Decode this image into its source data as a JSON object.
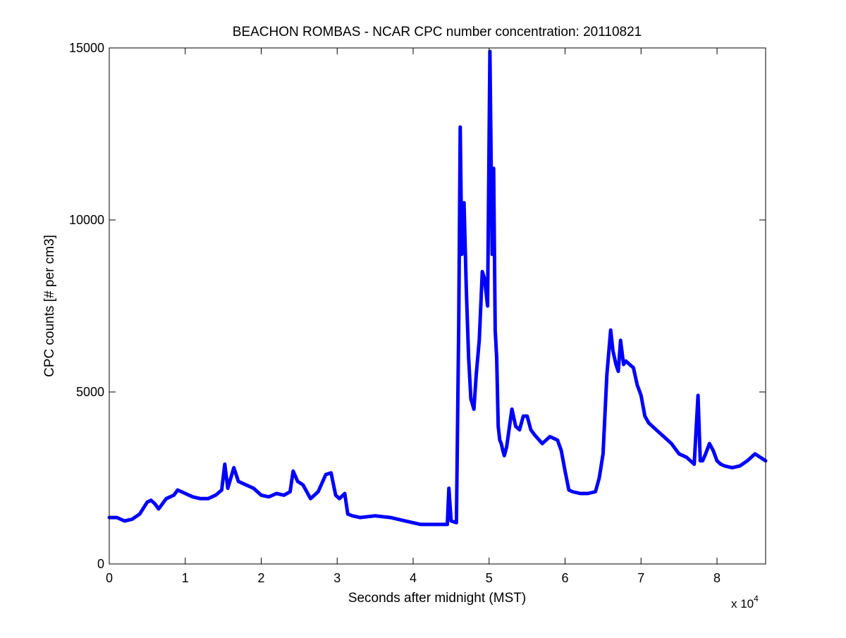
{
  "chart_data": {
    "type": "line",
    "title": "BEACHON ROMBAS - NCAR CPC number concentration: 20110821",
    "xlabel": "Seconds after midnight (MST)",
    "ylabel": "CPC counts [# per cm3]",
    "x_multiplier_label": "x 10",
    "x_multiplier_exponent": "4",
    "xlim": [
      0,
      86400
    ],
    "ylim": [
      0,
      15000
    ],
    "x_ticks": [
      0,
      10000,
      20000,
      30000,
      40000,
      50000,
      60000,
      70000,
      80000
    ],
    "x_tick_labels": [
      "0",
      "1",
      "2",
      "3",
      "4",
      "5",
      "6",
      "7",
      "8"
    ],
    "y_ticks": [
      0,
      5000,
      10000,
      15000
    ],
    "y_tick_labels": [
      "0",
      "5000",
      "10000",
      "15000"
    ],
    "grid": false,
    "series": [
      {
        "color": "#0000ff",
        "x": [
          0,
          1000,
          2000,
          3000,
          4000,
          5000,
          5500,
          6000,
          6500,
          7500,
          8500,
          9000,
          9500,
          10000,
          11000,
          12000,
          13000,
          14000,
          14800,
          15200,
          15600,
          16000,
          16400,
          17000,
          18000,
          19000,
          20000,
          21000,
          22000,
          23000,
          23800,
          24200,
          24800,
          25500,
          26500,
          27500,
          28500,
          29200,
          29800,
          30300,
          31000,
          31400,
          32000,
          33000,
          35000,
          37000,
          39000,
          41000,
          43000,
          44500,
          44700,
          45000,
          45700,
          46000,
          46200,
          46400,
          46700,
          47000,
          47300,
          47600,
          48000,
          48300,
          48700,
          49100,
          49400,
          49800,
          50100,
          50400,
          50600,
          50800,
          51000,
          51200,
          51400,
          51600,
          51800,
          52000,
          52300,
          53000,
          53500,
          54000,
          54500,
          55000,
          55500,
          56000,
          57000,
          58000,
          59000,
          59500,
          60000,
          60500,
          61000,
          62000,
          63000,
          64000,
          64500,
          65000,
          65500,
          66000,
          66300,
          66700,
          67000,
          67300,
          67700,
          68000,
          68500,
          69000,
          69500,
          70000,
          70500,
          71000,
          72000,
          73000,
          74000,
          75000,
          76000,
          77000,
          77500,
          77800,
          78100,
          78500,
          79000,
          79500,
          80000,
          80500,
          81000,
          82000,
          83000,
          84000,
          85000,
          86400
        ],
        "y": [
          1350,
          1350,
          1250,
          1300,
          1450,
          1800,
          1850,
          1750,
          1600,
          1900,
          2000,
          2150,
          2100,
          2050,
          1950,
          1900,
          1900,
          2000,
          2150,
          2900,
          2200,
          2500,
          2800,
          2400,
          2300,
          2200,
          2000,
          1950,
          2050,
          2000,
          2100,
          2700,
          2400,
          2300,
          1900,
          2100,
          2600,
          2650,
          2000,
          1900,
          2050,
          1450,
          1400,
          1350,
          1400,
          1350,
          1250,
          1150,
          1150,
          1150,
          2200,
          1250,
          1200,
          7000,
          12700,
          9000,
          10500,
          8000,
          6000,
          4800,
          4500,
          5500,
          6500,
          8500,
          8300,
          7500,
          14900,
          9000,
          11500,
          6800,
          6000,
          4000,
          3600,
          3500,
          3300,
          3150,
          3400,
          4500,
          4000,
          3900,
          4300,
          4300,
          3900,
          3750,
          3500,
          3700,
          3600,
          3300,
          2700,
          2150,
          2100,
          2050,
          2050,
          2100,
          2500,
          3200,
          5500,
          6800,
          6200,
          5800,
          5600,
          6500,
          5800,
          5900,
          5800,
          5700,
          5200,
          4900,
          4300,
          4100,
          3900,
          3700,
          3500,
          3200,
          3100,
          2900,
          4900,
          3000,
          3000,
          3200,
          3500,
          3300,
          3000,
          2900,
          2850,
          2800,
          2850,
          3000,
          3200,
          3000
        ]
      }
    ]
  }
}
